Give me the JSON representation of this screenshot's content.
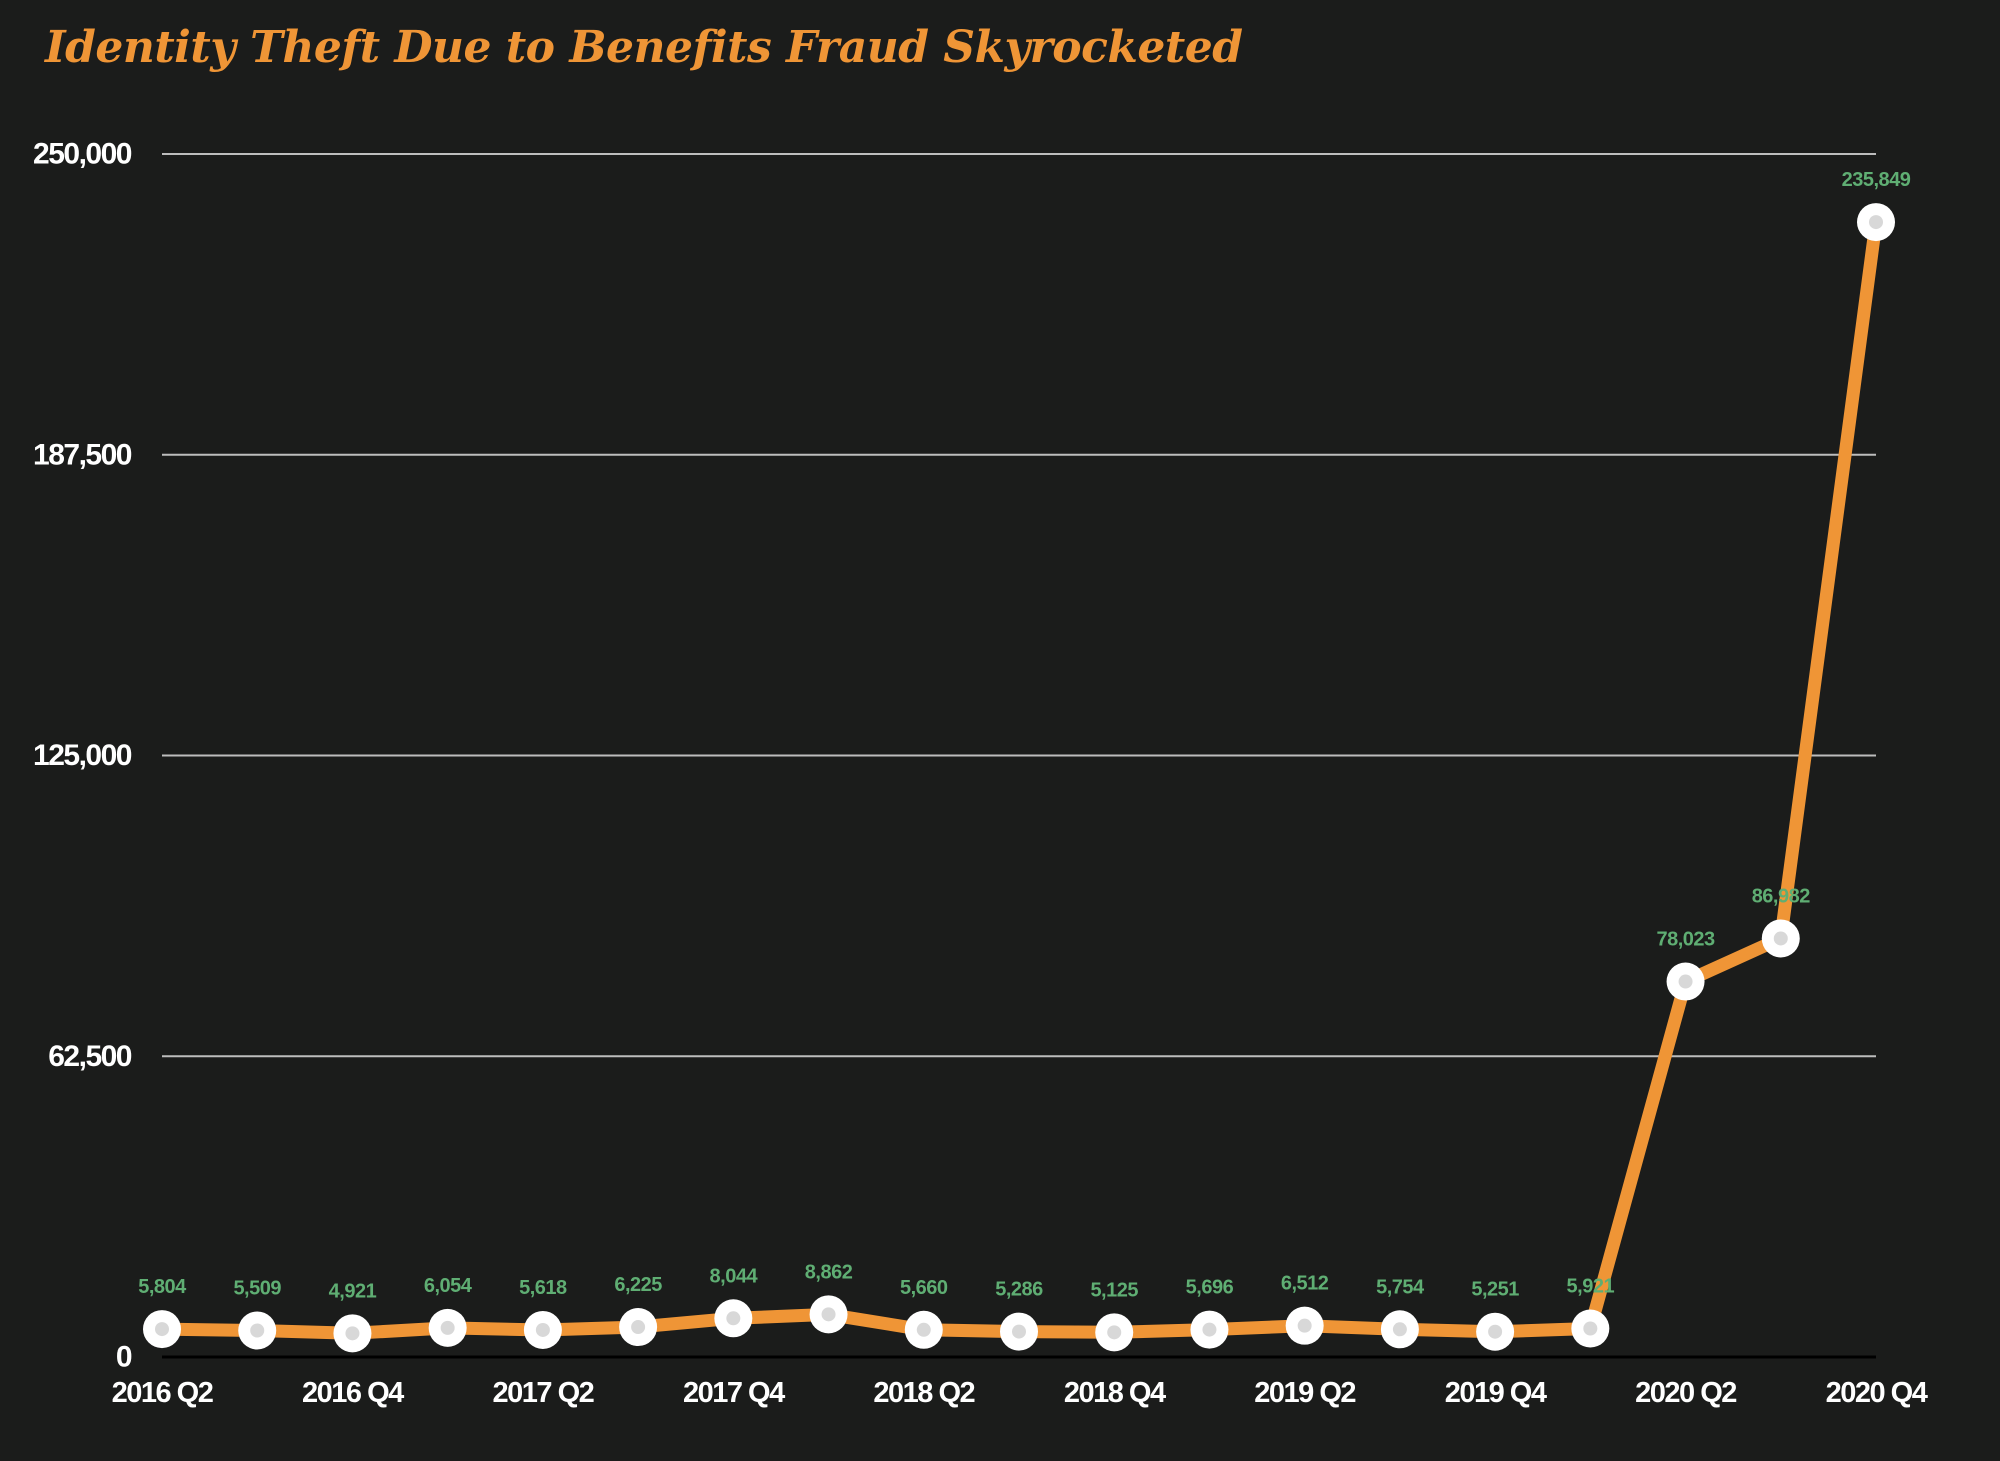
{
  "title": "Identity Theft Due to Benefits Fraud Skyrocketed",
  "colors": {
    "background": "#1b1c1b",
    "title": "#ef9536",
    "line": "#ef9536",
    "marker_fill": "#ffffff",
    "marker_center": "#d8d8d8",
    "data_label": "#5fae73",
    "gridline": "#bdbdbd",
    "axis_text": "#ffffff"
  },
  "chart_data": {
    "type": "line",
    "title": "Identity Theft Due to Benefits Fraud Skyrocketed",
    "xlabel": "",
    "ylabel": "",
    "x": [
      "2016 Q2",
      "2016 Q3",
      "2016 Q4",
      "2017 Q1",
      "2017 Q2",
      "2017 Q3",
      "2017 Q4",
      "2018 Q1",
      "2018 Q2",
      "2018 Q3",
      "2018 Q4",
      "2019 Q1",
      "2019 Q2",
      "2019 Q3",
      "2019 Q4",
      "2020 Q1",
      "2020 Q2",
      "2020 Q3",
      "2020 Q4"
    ],
    "x_tick_labels": [
      "2016 Q2",
      "2016 Q4",
      "2017 Q2",
      "2017 Q4",
      "2018 Q2",
      "2018 Q4",
      "2019 Q2",
      "2019 Q4",
      "2020 Q2",
      "2020 Q4"
    ],
    "series": [
      {
        "values": [
          5804,
          5509,
          4921,
          6054,
          5618,
          6225,
          8044,
          8862,
          5660,
          5286,
          5125,
          5696,
          6512,
          5754,
          5251,
          5921,
          78023,
          86982,
          235849
        ],
        "labels": [
          "5,804",
          "5,509",
          "4,921",
          "6,054",
          "5,618",
          "6,225",
          "8,044",
          "8,862",
          "5,660",
          "5,286",
          "5,125",
          "5,696",
          "6,512",
          "5,754",
          "5,251",
          "5,921",
          "78,023",
          "86,982",
          "235,849"
        ]
      }
    ],
    "ylim": [
      0,
      250000
    ],
    "y_ticks": [
      0,
      62500,
      125000,
      187500,
      250000
    ],
    "y_tick_labels": [
      "0",
      "62,500",
      "125,000",
      "187,500",
      "250,000"
    ],
    "grid": true,
    "legend": "none"
  }
}
